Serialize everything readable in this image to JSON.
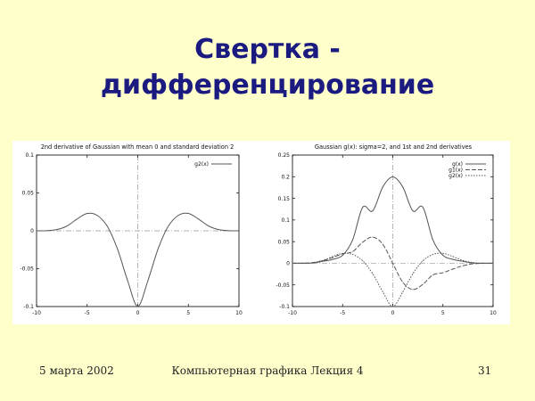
{
  "slide": {
    "title_line1": "Свертка -",
    "title_line2": "дифференцирование"
  },
  "footer": {
    "date": "5 марта 2002",
    "center": "Компьютерная графика Лекция 4",
    "page": "31"
  },
  "colors": {
    "background": "#ffffcc",
    "title": "#1a1a80",
    "curve": "#555555",
    "zero_axis": "#999999"
  },
  "chart_data": [
    {
      "type": "line",
      "title": "2nd derivative of Gaussian with mean 0 and standard deviation 2",
      "xlabel": "",
      "ylabel": "",
      "xlim": [
        -10,
        10
      ],
      "ylim": [
        -0.1,
        0.1
      ],
      "x_ticks": [
        -10,
        -5,
        0,
        5,
        10
      ],
      "x_tick_labels": [
        "-10",
        "-5",
        "0",
        "5",
        "10"
      ],
      "y_ticks": [
        -0.1,
        -0.05,
        0,
        0.05,
        0.1
      ],
      "y_tick_labels": [
        "-0.1",
        "-0.05",
        "0",
        "0.05",
        "0.1"
      ],
      "grid": false,
      "zero_lines": true,
      "legend_position": "top-right",
      "x": [
        -10,
        -9,
        -8,
        -7,
        -6,
        -5,
        -4,
        -3,
        -2,
        -1,
        0,
        1,
        2,
        3,
        4,
        5,
        6,
        7,
        8,
        9,
        10
      ],
      "series": [
        {
          "name": "g2(x)",
          "values": [
            0.0,
            0.0002,
            0.0016,
            0.0063,
            0.0155,
            0.0229,
            0.0203,
            0.0057,
            -0.0242,
            -0.0659,
            -0.0997,
            -0.0659,
            -0.0242,
            0.0057,
            0.0203,
            0.0229,
            0.0155,
            0.0063,
            0.0016,
            0.0002,
            0.0
          ]
        }
      ]
    },
    {
      "type": "line",
      "title": "Gaussian g(x): sigma=2, and 1st and 2nd derivatives",
      "xlabel": "",
      "ylabel": "",
      "xlim": [
        -10,
        10
      ],
      "ylim": [
        -0.1,
        0.25
      ],
      "x_ticks": [
        -10,
        -5,
        0,
        5,
        10
      ],
      "x_tick_labels": [
        "-10",
        "-5",
        "0",
        "5",
        "10"
      ],
      "y_ticks": [
        -0.1,
        -0.05,
        0,
        0.05,
        0.1,
        0.15,
        0.2,
        0.25
      ],
      "y_tick_labels": [
        "-0.1",
        "-0.05",
        "0",
        "0.05",
        "0.1",
        "0.15",
        "0.2",
        "0.25"
      ],
      "grid": false,
      "zero_lines": true,
      "legend_position": "top-right",
      "x": [
        -10,
        -9,
        -8,
        -7,
        -6,
        -5,
        -4,
        -3,
        -2,
        -1,
        0,
        1,
        2,
        3,
        4,
        5,
        6,
        7,
        8,
        9,
        10
      ],
      "series": [
        {
          "name": "g(x)",
          "values": [
            0.0,
            0.0001,
            0.0007,
            0.0044,
            0.0089,
            0.0183,
            0.054,
            0.1295,
            0.121,
            0.176,
            0.1995,
            0.176,
            0.121,
            0.1295,
            0.054,
            0.0183,
            0.0089,
            0.0044,
            0.0007,
            0.0001,
            0.0
          ]
        },
        {
          "name": "g1(x)",
          "values": [
            0.0,
            0.0002,
            0.0013,
            0.0058,
            0.0133,
            0.0219,
            0.027,
            0.0486,
            0.0605,
            0.044,
            0.0,
            -0.044,
            -0.0605,
            -0.0486,
            -0.027,
            -0.0219,
            -0.0133,
            -0.0058,
            -0.0013,
            -0.0002,
            0.0
          ]
        },
        {
          "name": "g2(x)",
          "values": [
            0.0,
            0.0002,
            0.0016,
            0.0063,
            0.0155,
            0.0229,
            0.0203,
            0.0057,
            -0.0242,
            -0.0659,
            -0.0997,
            -0.0659,
            -0.0242,
            0.0057,
            0.0203,
            0.0229,
            0.0155,
            0.0063,
            0.0016,
            0.0002,
            0.0
          ]
        }
      ]
    }
  ]
}
